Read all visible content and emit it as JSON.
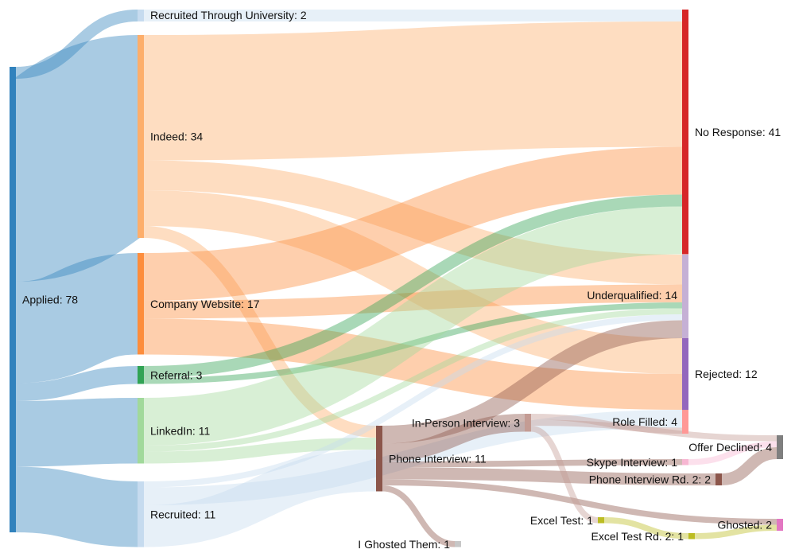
{
  "chart_data": {
    "type": "sankey",
    "title": "",
    "nodes": [
      {
        "id": "applied",
        "label": "Applied: 78",
        "value": 78,
        "color": "#3182bd"
      },
      {
        "id": "university",
        "label": "Recruited Through University: 2",
        "value": 2,
        "color": "#c6dbef"
      },
      {
        "id": "indeed",
        "label": "Indeed: 34",
        "value": 34,
        "color": "#fdae6b"
      },
      {
        "id": "company",
        "label": "Company Website: 17",
        "value": 17,
        "color": "#fd8d3c"
      },
      {
        "id": "referral",
        "label": "Referral: 3",
        "value": 3,
        "color": "#31a354"
      },
      {
        "id": "linkedin",
        "label": "LinkedIn: 11",
        "value": 11,
        "color": "#a1d99b"
      },
      {
        "id": "recruited",
        "label": "Recruited: 11",
        "value": 11,
        "color": "#c6dbef"
      },
      {
        "id": "phone",
        "label": "Phone Interview: 11",
        "value": 11,
        "color": "#8c564b"
      },
      {
        "id": "ghostedthem",
        "label": "I Ghosted Them: 1",
        "value": 1,
        "color": "#c7c7c7"
      },
      {
        "id": "inperson",
        "label": "In-Person Interview: 3",
        "value": 3,
        "color": "#c49c94"
      },
      {
        "id": "skype",
        "label": "Skype Interview: 1",
        "value": 1,
        "color": "#f7b6d2"
      },
      {
        "id": "phone2",
        "label": "Phone Interview Rd. 2: 2",
        "value": 2,
        "color": "#8c564b"
      },
      {
        "id": "excel",
        "label": "Excel Test: 1",
        "value": 1,
        "color": "#bcbd22"
      },
      {
        "id": "excel2",
        "label": "Excel Test Rd. 2: 1",
        "value": 1,
        "color": "#bcbd22"
      },
      {
        "id": "noresponse",
        "label": "No Response: 41",
        "value": 41,
        "color": "#d62728"
      },
      {
        "id": "underqualified",
        "label": "Underqualified: 14",
        "value": 14,
        "color": "#c5b0d5"
      },
      {
        "id": "rejected",
        "label": "Rejected: 12",
        "value": 12,
        "color": "#9467bd"
      },
      {
        "id": "rolefilled",
        "label": "Role Filled: 4",
        "value": 4,
        "color": "#ff9896"
      },
      {
        "id": "offerdeclined",
        "label": "Offer Declined: 4",
        "value": 4,
        "color": "#7f7f7f"
      },
      {
        "id": "ghosted",
        "label": "Ghosted: 2",
        "value": 2,
        "color": "#e377c2"
      }
    ],
    "links": [
      {
        "source": "applied",
        "target": "university",
        "value": 2
      },
      {
        "source": "applied",
        "target": "indeed",
        "value": 34
      },
      {
        "source": "applied",
        "target": "company",
        "value": 17
      },
      {
        "source": "applied",
        "target": "referral",
        "value": 3
      },
      {
        "source": "applied",
        "target": "linkedin",
        "value": 11
      },
      {
        "source": "applied",
        "target": "recruited",
        "value": 11
      },
      {
        "source": "university",
        "target": "noresponse",
        "value": 2
      },
      {
        "source": "indeed",
        "target": "noresponse",
        "value": 21
      },
      {
        "source": "indeed",
        "target": "underqualified",
        "value": 5
      },
      {
        "source": "indeed",
        "target": "rejected",
        "value": 6
      },
      {
        "source": "indeed",
        "target": "phone",
        "value": 2
      },
      {
        "source": "company",
        "target": "noresponse",
        "value": 8
      },
      {
        "source": "company",
        "target": "underqualified",
        "value": 3
      },
      {
        "source": "company",
        "target": "rejected",
        "value": 6
      },
      {
        "source": "referral",
        "target": "noresponse",
        "value": 2
      },
      {
        "source": "referral",
        "target": "underqualified",
        "value": 1
      },
      {
        "source": "linkedin",
        "target": "noresponse",
        "value": 8
      },
      {
        "source": "linkedin",
        "target": "underqualified",
        "value": 1
      },
      {
        "source": "linkedin",
        "target": "phone",
        "value": 2
      },
      {
        "source": "recruited",
        "target": "underqualified",
        "value": 1
      },
      {
        "source": "recruited",
        "target": "phone",
        "value": 7
      },
      {
        "source": "recruited",
        "target": "rolefilled",
        "value": 3
      },
      {
        "source": "phone",
        "target": "underqualified",
        "value": 3
      },
      {
        "source": "phone",
        "target": "inperson",
        "value": 3
      },
      {
        "source": "phone",
        "target": "skype",
        "value": 1
      },
      {
        "source": "phone",
        "target": "phone2",
        "value": 2
      },
      {
        "source": "phone",
        "target": "ghosted",
        "value": 1
      },
      {
        "source": "phone",
        "target": "ghostedthem",
        "value": 1
      },
      {
        "source": "inperson",
        "target": "rolefilled",
        "value": 1
      },
      {
        "source": "inperson",
        "target": "offerdeclined",
        "value": 1
      },
      {
        "source": "inperson",
        "target": "excel",
        "value": 1
      },
      {
        "source": "skype",
        "target": "offerdeclined",
        "value": 1
      },
      {
        "source": "phone2",
        "target": "offerdeclined",
        "value": 2
      },
      {
        "source": "excel",
        "target": "excel2",
        "value": 1
      },
      {
        "source": "excel2",
        "target": "ghosted",
        "value": 1
      }
    ]
  }
}
